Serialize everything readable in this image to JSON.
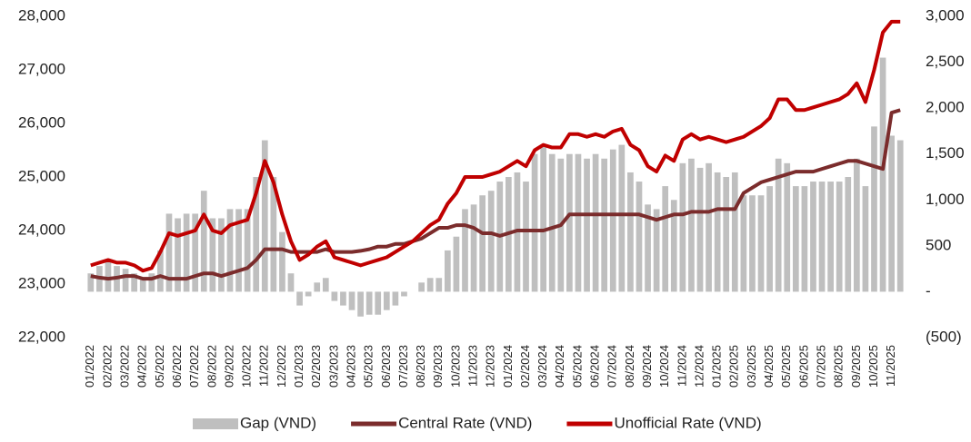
{
  "chart_data": {
    "type": "bar-line",
    "categories": [
      "01/2022",
      null,
      "02/2022",
      null,
      "03/2022",
      null,
      "04/2022",
      null,
      "05/2022",
      null,
      "06/2022",
      null,
      "07/2022",
      null,
      "08/2022",
      null,
      "09/2022",
      null,
      "10/2022",
      null,
      "11/2022",
      null,
      "12/2022",
      null,
      "01/2023",
      null,
      "02/2023",
      null,
      "03/2023",
      null,
      "04/2023",
      null,
      "05/2023",
      null,
      "06/2023",
      null,
      "07/2023",
      null,
      "08/2023",
      null,
      "09/2023",
      null,
      "10/2023",
      null,
      "11/2023",
      null,
      "12/2023",
      null,
      "01/2024",
      null,
      "02/2024",
      null,
      "03/2024",
      null,
      "04/2024",
      null,
      "05/2024",
      null,
      "06/2024",
      null,
      "07/2024",
      null,
      "08/2024",
      null,
      "09/2024",
      null,
      "10/2024",
      null,
      "11/2024",
      null,
      "12/2024",
      null,
      "01/2025",
      null,
      "02/2025",
      null,
      "03/2025",
      null,
      "04/2025",
      null,
      "05/2025",
      null,
      "06/2025",
      null,
      "07/2025",
      null,
      "08/2025",
      null,
      "09/2025",
      null,
      "10/2025",
      null,
      "11/2025",
      null
    ],
    "series": [
      {
        "name": "Gap (VND)",
        "color": "#bfbfbf",
        "kind": "bar",
        "axis": "y2",
        "values": [
          200,
          280,
          350,
          280,
          250,
          200,
          150,
          200,
          450,
          850,
          800,
          850,
          850,
          1100,
          800,
          800,
          900,
          900,
          900,
          1250,
          1650,
          1250,
          650,
          200,
          -150,
          -50,
          100,
          150,
          -100,
          -150,
          -200,
          -270,
          -250,
          -250,
          -200,
          -150,
          -50,
          0,
          100,
          150,
          150,
          450,
          600,
          900,
          950,
          1050,
          1100,
          1200,
          1250,
          1300,
          1200,
          1500,
          1600,
          1500,
          1450,
          1500,
          1500,
          1450,
          1500,
          1450,
          1550,
          1600,
          1300,
          1200,
          950,
          900,
          1150,
          1000,
          1400,
          1450,
          1350,
          1400,
          1300,
          1250,
          1300,
          1050,
          1050,
          1050,
          1150,
          1450,
          1400,
          1150,
          1150,
          1200,
          1200,
          1200,
          1200,
          1250,
          1450,
          1150,
          1800,
          2550,
          1700,
          1650
        ]
      },
      {
        "name": "Central Rate (VND)",
        "color": "#7b2c2c",
        "kind": "line",
        "values": [
          23150,
          23120,
          23100,
          23120,
          23150,
          23150,
          23100,
          23100,
          23150,
          23100,
          23100,
          23100,
          23150,
          23200,
          23200,
          23150,
          23200,
          23250,
          23300,
          23450,
          23650,
          23650,
          23650,
          23600,
          23600,
          23600,
          23600,
          23650,
          23600,
          23600,
          23600,
          23620,
          23650,
          23700,
          23700,
          23750,
          23750,
          23800,
          23850,
          23950,
          24050,
          24050,
          24100,
          24100,
          24050,
          23950,
          23950,
          23900,
          23950,
          24000,
          24000,
          24000,
          24000,
          24050,
          24100,
          24300,
          24300,
          24300,
          24300,
          24300,
          24300,
          24300,
          24300,
          24300,
          24250,
          24200,
          24250,
          24300,
          24300,
          24350,
          24350,
          24350,
          24400,
          24400,
          24400,
          24700,
          24800,
          24900,
          24950,
          25000,
          25050,
          25100,
          25100,
          25100,
          25150,
          25200,
          25250,
          25300,
          25300,
          25250,
          25200,
          25150,
          26200,
          26250
        ]
      },
      {
        "name": "Unofficial Rate (VND)",
        "color": "#c00000",
        "kind": "line",
        "values": [
          23350,
          23400,
          23450,
          23400,
          23400,
          23350,
          23250,
          23300,
          23600,
          23950,
          23900,
          23950,
          24000,
          24300,
          24000,
          23950,
          24100,
          24150,
          24200,
          24700,
          25300,
          24900,
          24300,
          23800,
          23450,
          23550,
          23700,
          23800,
          23500,
          23450,
          23400,
          23350,
          23400,
          23450,
          23500,
          23600,
          23700,
          23800,
          23950,
          24100,
          24200,
          24500,
          24700,
          25000,
          25000,
          25000,
          25050,
          25100,
          25200,
          25300,
          25200,
          25500,
          25600,
          25550,
          25550,
          25800,
          25800,
          25750,
          25800,
          25750,
          25850,
          25900,
          25600,
          25500,
          25200,
          25100,
          25400,
          25300,
          25700,
          25800,
          25700,
          25750,
          25700,
          25650,
          25700,
          25750,
          25850,
          25950,
          26100,
          26450,
          26450,
          26250,
          26250,
          26300,
          26350,
          26400,
          26450,
          26550,
          26750,
          26400,
          27000,
          27700,
          27900,
          27900
        ]
      }
    ],
    "ylim": [
      22000,
      28000
    ],
    "yticks": [
      {
        "value": 22000,
        "label": "22,000"
      },
      {
        "value": 23000,
        "label": "23,000"
      },
      {
        "value": 24000,
        "label": "24,000"
      },
      {
        "value": 25000,
        "label": "25,000"
      },
      {
        "value": 26000,
        "label": "26,000"
      },
      {
        "value": 27000,
        "label": "27,000"
      },
      {
        "value": 28000,
        "label": "28,000"
      }
    ],
    "y2lim": [
      -500,
      3000
    ],
    "y2ticks": [
      {
        "value": -500,
        "label": "(500)"
      },
      {
        "value": 0,
        "label": "-"
      },
      500,
      {
        "value": 1000,
        "label": "1,000"
      },
      {
        "value": 1500,
        "label": "1,500"
      },
      {
        "value": 2000,
        "label": "2,000"
      },
      {
        "value": 2500,
        "label": "2,500"
      },
      {
        "value": 3000,
        "label": "3,000"
      }
    ],
    "legend": "bottom"
  }
}
